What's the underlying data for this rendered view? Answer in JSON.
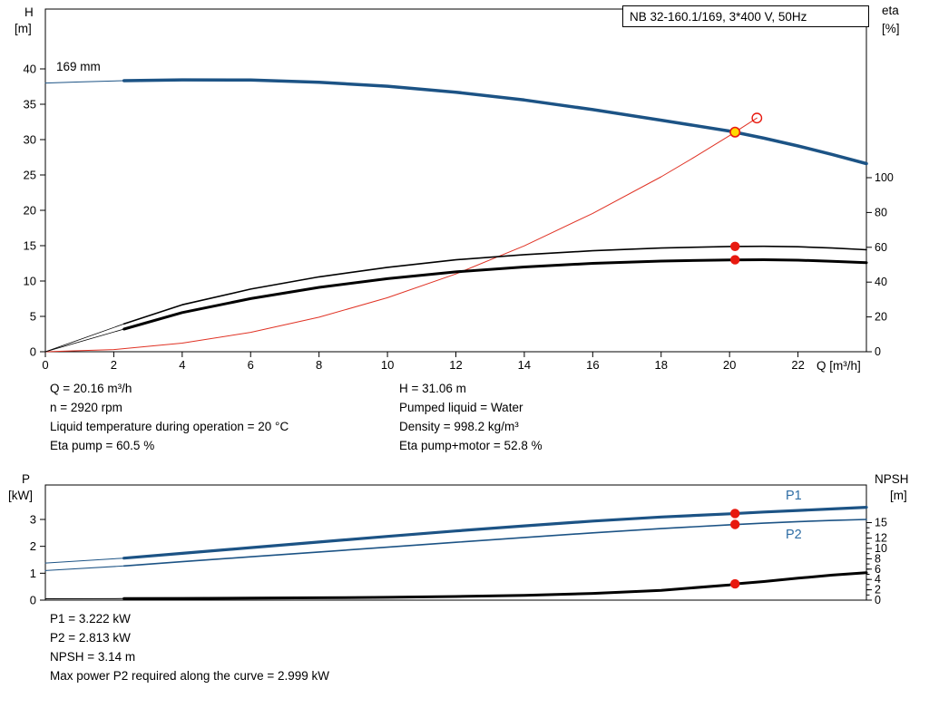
{
  "title_box": "NB 32-160.1/169, 3*400 V, 50Hz",
  "axes_titles": {
    "head_top": "H",
    "head_bottom": "[m]",
    "eta_top": "eta",
    "eta_bottom": "[%]",
    "flow": "Q [m³/h]",
    "power_top": "P",
    "power_bottom": "[kW]",
    "npsh_top": "NPSH",
    "npsh_bottom": "[m]"
  },
  "impeller_label": "169 mm",
  "curve_labels": {
    "p1": "P1",
    "p2": "P2"
  },
  "duty_point": {
    "Q": 20.16,
    "H": 31.06,
    "eta_pump": 60.5,
    "eta_pump_motor": 52.8,
    "P1": 3.222,
    "P2": 2.813,
    "NPSH": 3.14
  },
  "info_top": {
    "col1": [
      "Q = 20.16 m³/h",
      "n = 2920 rpm",
      "Liquid temperature during operation = 20 °C",
      "Eta pump = 60.5 %"
    ],
    "col2": [
      "H = 31.06 m",
      "Pumped liquid = Water",
      "Density = 998.2 kg/m³",
      "Eta pump+motor = 52.8 %"
    ]
  },
  "info_bottom": [
    "P1 = 3.222 kW",
    "P2 = 2.813 kW",
    "NPSH = 3.14 m",
    "Max power P2 required along the curve = 2.999 kW"
  ],
  "colors": {
    "curve_blue": "#1c5385",
    "label_blue": "#2e6da4",
    "curve_red": "#e03224",
    "marker_red": "#e8190f",
    "marker_yellow": "#ffd800",
    "black": "#000000"
  },
  "chart_data": [
    {
      "type": "line",
      "name": "hq-eta-chart",
      "title": "NB 32-160.1/169, 3*400 V, 50Hz",
      "x_label": "Q [m³/h]",
      "x_range": [
        0,
        24
      ],
      "x_ticks": [
        0,
        2,
        4,
        6,
        8,
        10,
        12,
        14,
        16,
        18,
        20,
        22
      ],
      "left_axis": {
        "label": "H [m]",
        "ticks": [
          0,
          5,
          10,
          15,
          20,
          25,
          30,
          35,
          40
        ],
        "range": [
          0,
          48.5
        ]
      },
      "right_axis": {
        "label": "eta [%]",
        "ticks": [
          0,
          20,
          40,
          60,
          80,
          100
        ],
        "range": [
          0,
          196
        ]
      },
      "series": [
        {
          "name": "system-curve",
          "axis": "left",
          "color": "#e03224",
          "width": 1,
          "points": [
            [
              0,
              0
            ],
            [
              2,
              0.31
            ],
            [
              4,
              1.22
            ],
            [
              6,
              2.75
            ],
            [
              8,
              4.89
            ],
            [
              10,
              7.64
            ],
            [
              12,
              11.0
            ],
            [
              14,
              14.97
            ],
            [
              16,
              19.56
            ],
            [
              18,
              24.75
            ],
            [
              19,
              27.6
            ],
            [
              20,
              30.56
            ],
            [
              20.16,
              31.06
            ],
            [
              20.8,
              33.05
            ]
          ]
        },
        {
          "name": "eta-pump-leadin",
          "axis": "right",
          "color": "#000000",
          "width": 0.8,
          "points": [
            [
              0,
              0
            ],
            [
              2.3,
              16
            ]
          ]
        },
        {
          "name": "eta-pump-curve",
          "axis": "right",
          "color": "#000000",
          "width": 1.6,
          "points": [
            [
              2.3,
              16
            ],
            [
              4,
              27
            ],
            [
              6,
              36
            ],
            [
              8,
              43
            ],
            [
              10,
              48.5
            ],
            [
              12,
              52.8
            ],
            [
              14,
              55.8
            ],
            [
              16,
              58
            ],
            [
              18,
              59.6
            ],
            [
              20,
              60.45
            ],
            [
              21,
              60.55
            ],
            [
              22,
              60.3
            ],
            [
              23,
              59.6
            ],
            [
              24,
              58.6
            ]
          ]
        },
        {
          "name": "eta-pump-motor-leadin",
          "axis": "right",
          "color": "#000000",
          "width": 0.8,
          "points": [
            [
              0,
              0
            ],
            [
              2.3,
              13
            ]
          ]
        },
        {
          "name": "eta-pump-motor-curve",
          "axis": "right",
          "color": "#000000",
          "width": 3,
          "points": [
            [
              2.3,
              13
            ],
            [
              4,
              22.5
            ],
            [
              6,
              30.5
            ],
            [
              8,
              37
            ],
            [
              10,
              42
            ],
            [
              12,
              45.9
            ],
            [
              14,
              48.7
            ],
            [
              16,
              50.8
            ],
            [
              18,
              52.1
            ],
            [
              20,
              52.75
            ],
            [
              21,
              52.85
            ],
            [
              22,
              52.6
            ],
            [
              23,
              52
            ],
            [
              24,
              51.2
            ]
          ]
        },
        {
          "name": "head-curve-leadin",
          "axis": "left",
          "color": "#1c5385",
          "width": 1,
          "points": [
            [
              0,
              38.0
            ],
            [
              1,
              38.15
            ],
            [
              2.3,
              38.33
            ]
          ]
        },
        {
          "name": "head-curve",
          "axis": "left",
          "color": "#1c5385",
          "width": 3.5,
          "points": [
            [
              2.3,
              38.33
            ],
            [
              4,
              38.45
            ],
            [
              6,
              38.42
            ],
            [
              8,
              38.1
            ],
            [
              10,
              37.55
            ],
            [
              12,
              36.7
            ],
            [
              14,
              35.6
            ],
            [
              16,
              34.25
            ],
            [
              18,
              32.75
            ],
            [
              20,
              31.2
            ],
            [
              21,
              30.2
            ],
            [
              22,
              29.1
            ],
            [
              23,
              27.9
            ],
            [
              24,
              26.6
            ]
          ]
        }
      ],
      "markers": [
        {
          "name": "duty-point-head",
          "q": 20.16,
          "v": 31.06,
          "axis": "left",
          "style": "yellow"
        },
        {
          "name": "system-curve-end-marker",
          "q": 20.8,
          "v": 33.05,
          "axis": "left",
          "style": "open"
        },
        {
          "name": "duty-point-eta-pump",
          "q": 20.16,
          "v": 60.5,
          "axis": "right",
          "style": "filled"
        },
        {
          "name": "duty-point-eta-pump-motor",
          "q": 20.16,
          "v": 52.8,
          "axis": "right",
          "style": "filled"
        }
      ]
    },
    {
      "type": "line",
      "name": "power-npsh-chart",
      "x_label": "",
      "x_range": [
        0,
        24
      ],
      "x_ticks": [],
      "left_axis": {
        "label": "P [kW]",
        "ticks": [
          0,
          1,
          2,
          3
        ],
        "range": [
          0,
          4.3
        ]
      },
      "right_axis": {
        "label": "NPSH [m]",
        "ticks": [
          0,
          2,
          4,
          6,
          8,
          10,
          12,
          15
        ],
        "minor_step": 1,
        "minor_max": 15,
        "range": [
          0,
          15
        ]
      },
      "series": [
        {
          "name": "p1-leadin",
          "axis": "left",
          "color": "#1c5385",
          "width": 1,
          "points": [
            [
              0,
              1.38
            ],
            [
              2.3,
              1.56
            ]
          ]
        },
        {
          "name": "p1-curve",
          "axis": "left",
          "color": "#1c5385",
          "width": 3.2,
          "points": [
            [
              2.3,
              1.56
            ],
            [
              4,
              1.74
            ],
            [
              6,
              1.95
            ],
            [
              8,
              2.16
            ],
            [
              10,
              2.37
            ],
            [
              12,
              2.57
            ],
            [
              14,
              2.76
            ],
            [
              16,
              2.94
            ],
            [
              18,
              3.09
            ],
            [
              20,
              3.21
            ],
            [
              21,
              3.275
            ],
            [
              22,
              3.335
            ],
            [
              23,
              3.39
            ],
            [
              24,
              3.45
            ]
          ]
        },
        {
          "name": "p2-leadin",
          "axis": "left",
          "color": "#1c5385",
          "width": 1,
          "points": [
            [
              0,
              1.1
            ],
            [
              2.3,
              1.27
            ]
          ]
        },
        {
          "name": "p2-curve",
          "axis": "left",
          "color": "#1c5385",
          "width": 1.6,
          "points": [
            [
              2.3,
              1.27
            ],
            [
              4,
              1.43
            ],
            [
              6,
              1.61
            ],
            [
              8,
              1.79
            ],
            [
              10,
              1.97
            ],
            [
              12,
              2.15
            ],
            [
              14,
              2.33
            ],
            [
              16,
              2.5
            ],
            [
              18,
              2.66
            ],
            [
              20,
              2.8
            ],
            [
              21,
              2.862
            ],
            [
              22,
              2.918
            ],
            [
              23,
              2.962
            ],
            [
              24,
              2.999
            ]
          ]
        },
        {
          "name": "npsh-leadin",
          "axis": "right",
          "color": "#000000",
          "width": 1,
          "points": [
            [
              0,
              0.27
            ],
            [
              2.3,
              0.3
            ]
          ]
        },
        {
          "name": "npsh-curve",
          "axis": "right",
          "color": "#000000",
          "width": 3,
          "points": [
            [
              2.3,
              0.3
            ],
            [
              4,
              0.33
            ],
            [
              6,
              0.38
            ],
            [
              8,
              0.45
            ],
            [
              10,
              0.55
            ],
            [
              12,
              0.7
            ],
            [
              14,
              0.92
            ],
            [
              16,
              1.3
            ],
            [
              18,
              1.9
            ],
            [
              20,
              2.95
            ],
            [
              20.16,
              3.14
            ],
            [
              21,
              3.6
            ],
            [
              22,
              4.25
            ],
            [
              23,
              4.85
            ],
            [
              24,
              5.3
            ]
          ]
        }
      ],
      "markers": [
        {
          "name": "duty-point-p1",
          "q": 20.16,
          "v": 3.222,
          "axis": "left",
          "style": "filled"
        },
        {
          "name": "duty-point-p2",
          "q": 20.16,
          "v": 2.813,
          "axis": "left",
          "style": "filled"
        },
        {
          "name": "duty-point-npsh",
          "q": 20.16,
          "v": 3.14,
          "axis": "right",
          "style": "filled"
        }
      ]
    }
  ]
}
